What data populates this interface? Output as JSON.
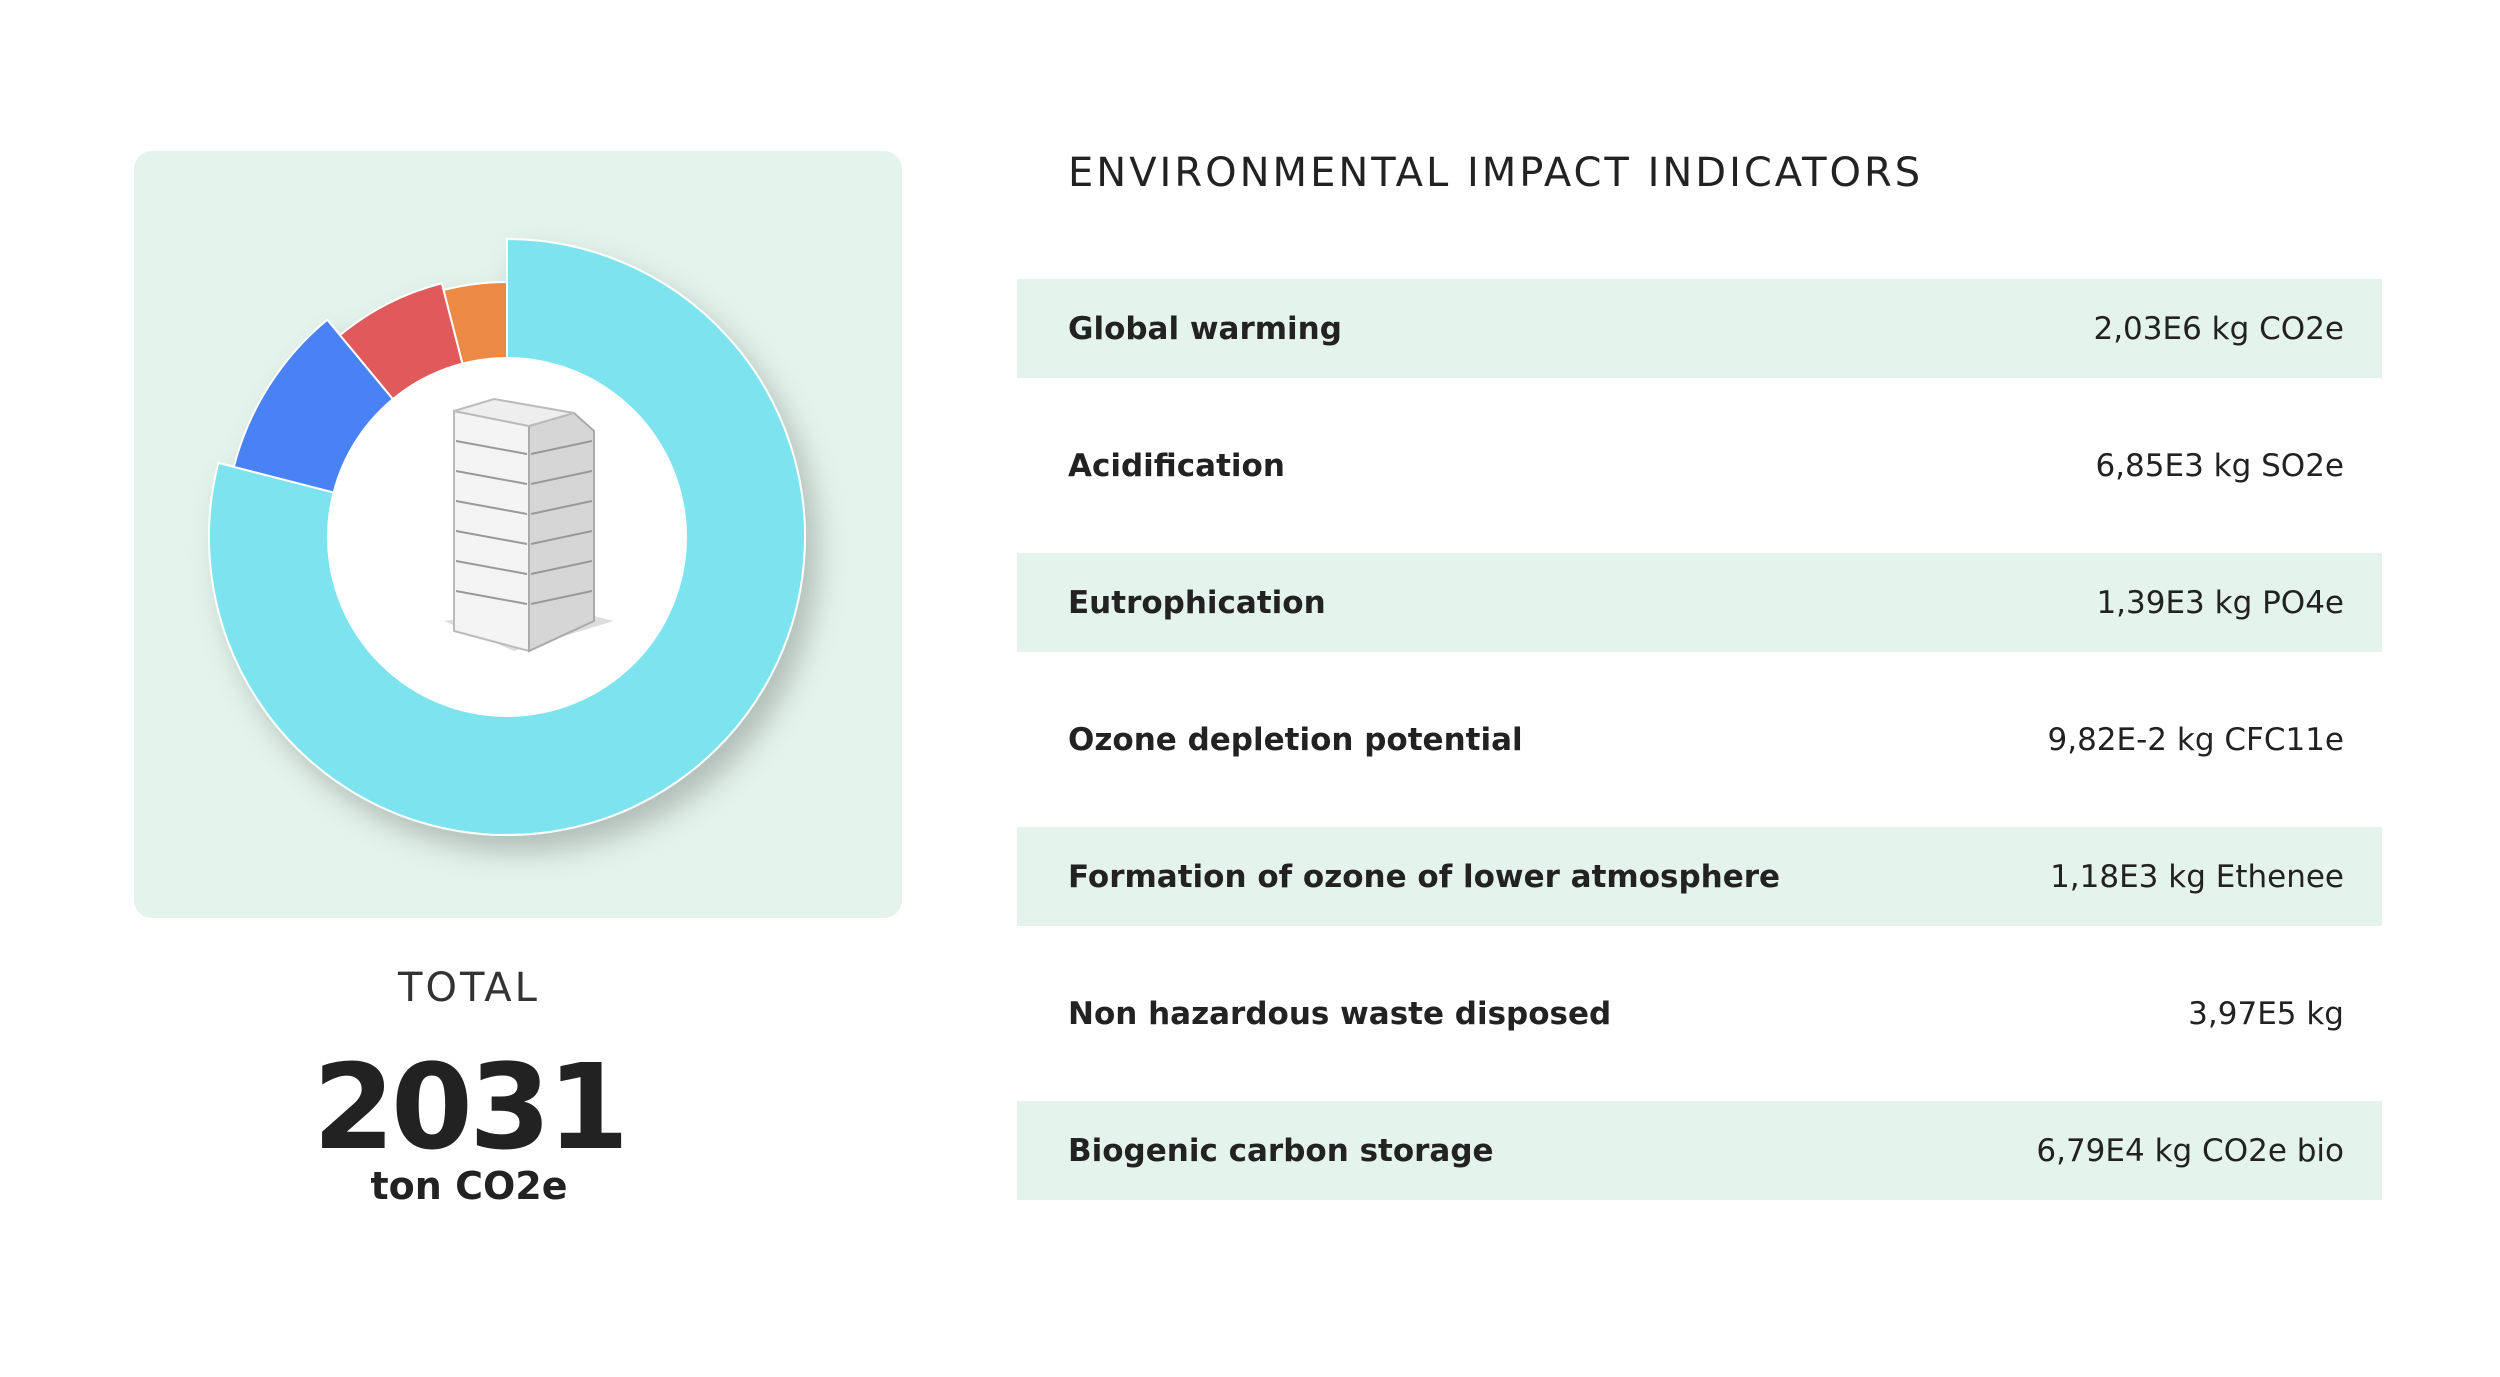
{
  "donut": {
    "segments": [
      {
        "color": "#7de3ee",
        "value": 79
      },
      {
        "color": "#4a82f5",
        "value": 10
      },
      {
        "color": "#e05a5c",
        "value": 7
      },
      {
        "color": "#ec8a45",
        "value": 4
      }
    ]
  },
  "total": {
    "label": "TOTAL",
    "value": 2031,
    "unit": "ton CO2e"
  },
  "table": {
    "title": "ENVIRONMENTAL IMPACT INDICATORS",
    "rows": [
      [
        "Global warming",
        "2,03E6 kg CO2e"
      ],
      [
        "Acidification",
        "6,85E3 kg SO2e"
      ],
      [
        "Eutrophication",
        "1,39E3 kg PO4e"
      ],
      [
        "Ozone depletion potential",
        "9,82E-2 kg CFC11e"
      ],
      [
        "Formation of ozone of lower atmosphere",
        "1,18E3 kg Ethenee"
      ],
      [
        "Non hazardous waste disposed",
        "3,97E5 kg"
      ],
      [
        "Biogenic carbon storage",
        "6,79E4 kg CO2e bio"
      ]
    ]
  }
}
